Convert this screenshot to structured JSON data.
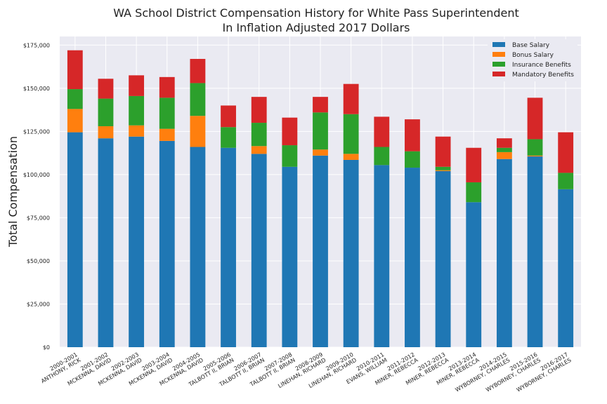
{
  "chart_data": {
    "type": "bar",
    "stacked": true,
    "title": "WA School District Compensation History for White Pass Superintendent",
    "subtitle": "In Inflation Adjusted 2017 Dollars",
    "xlabel": "",
    "ylabel": "Total Compensation",
    "ylim": [
      0,
      180000
    ],
    "y_ticks": [
      0,
      25000,
      50000,
      75000,
      100000,
      125000,
      150000,
      175000
    ],
    "y_tick_labels": [
      "$0",
      "$25,000",
      "$50,000",
      "$75,000",
      "$100,000",
      "$125,000",
      "$150,000",
      "$175,000"
    ],
    "grid": true,
    "legend_position": "top-right",
    "categories": [
      "2000-2001\nANTHONY, RICK",
      "2001-2002\nMCKENNA, DAVID",
      "2002-2003\nMCKENNA, DAVID",
      "2003-2004\nMCKENNA, DAVID",
      "2004-2005\nMCKENNA, DAVID",
      "2005-2006\nTALBOTT II, BRIAN",
      "2006-2007\nTALBOTT II, BRIAN",
      "2007-2008\nTALBOTT II, BRIAN",
      "2008-2009\nLINEHAN, RICHARD",
      "2009-2010\nLINEHAN, RICHARD",
      "2010-2011\nEVANS, WILLIAM",
      "2011-2012\nMINER, REBECCA",
      "2012-2013\nMINER, REBECCA",
      "2013-2014\nMINER, REBECCA",
      "2014-2015\nWYBORNEY, CHARLES",
      "2015-2016\nWYBORNEY, CHARLES",
      "2016-2017\nWYBORNEY, CHARLES"
    ],
    "series": [
      {
        "name": "Base Salary",
        "color": "#1f77b4",
        "values": [
          124500,
          121000,
          122000,
          119500,
          116000,
          115500,
          112000,
          104500,
          111000,
          108500,
          105500,
          104000,
          102000,
          84000,
          109000,
          110500,
          91500
        ]
      },
      {
        "name": "Bonus Salary",
        "color": "#ff7f0e",
        "values": [
          13500,
          7000,
          6500,
          7000,
          18000,
          0,
          4500,
          0,
          3500,
          3500,
          0,
          0,
          500,
          0,
          4000,
          500,
          0
        ]
      },
      {
        "name": "Insurance Benefits",
        "color": "#2ca02c",
        "values": [
          11500,
          16000,
          17000,
          18000,
          19000,
          12000,
          13500,
          12500,
          21500,
          23000,
          10500,
          9500,
          2000,
          11500,
          2500,
          9500,
          9500
        ]
      },
      {
        "name": "Mandatory Benefits",
        "color": "#d62728",
        "values": [
          22500,
          11500,
          12000,
          12000,
          14000,
          12500,
          15000,
          16000,
          9000,
          17500,
          17500,
          18500,
          17500,
          20000,
          5500,
          24000,
          23500
        ]
      }
    ]
  }
}
